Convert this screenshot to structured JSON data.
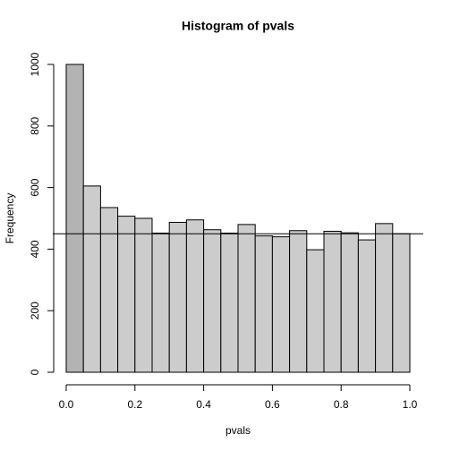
{
  "chart_data": {
    "type": "histogram",
    "title": "Histogram of pvals",
    "x_label": "pvals",
    "y_label": "Frequency",
    "bins": [
      0,
      0.05,
      0.1,
      0.15,
      0.2,
      0.25,
      0.3,
      0.35,
      0.4,
      0.45,
      0.5,
      0.55,
      0.6,
      0.65,
      0.7,
      0.75,
      0.8,
      0.85,
      0.9,
      0.95,
      1
    ],
    "values": [
      1000,
      605,
      535,
      507,
      500,
      452,
      487,
      495,
      463,
      452,
      480,
      443,
      440,
      460,
      398,
      458,
      453,
      430,
      483,
      450
    ],
    "colors": [
      "#b3b3b3",
      "#cccccc",
      "#cccccc",
      "#cccccc",
      "#cccccc",
      "#cccccc",
      "#cccccc",
      "#cccccc",
      "#cccccc",
      "#cccccc",
      "#cccccc",
      "#cccccc",
      "#cccccc",
      "#cccccc",
      "#cccccc",
      "#cccccc",
      "#cccccc",
      "#cccccc",
      "#cccccc",
      "#cccccc"
    ],
    "reference_line": 450,
    "xlim": [
      0,
      1
    ],
    "ylim": [
      0,
      1000
    ],
    "xticks": [
      {
        "value": 0,
        "label": "0.0"
      },
      {
        "value": 0.2,
        "label": "0.2"
      },
      {
        "value": 0.4,
        "label": "0.4"
      },
      {
        "value": 0.6,
        "label": "0.6"
      },
      {
        "value": 0.8,
        "label": "0.8"
      },
      {
        "value": 1,
        "label": "1.0"
      }
    ],
    "yticks": [
      0,
      200,
      400,
      600,
      800,
      1000
    ]
  }
}
